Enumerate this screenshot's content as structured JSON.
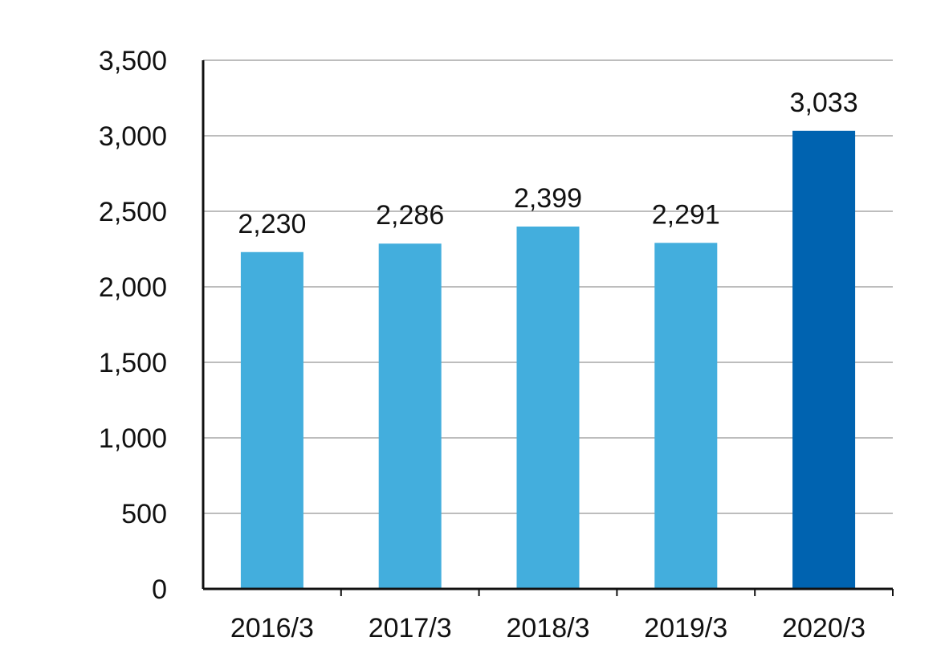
{
  "chart_data": {
    "type": "bar",
    "categories": [
      "2016/3",
      "2017/3",
      "2018/3",
      "2019/3",
      "2020/3"
    ],
    "values": [
      2230,
      2286,
      2399,
      2291,
      3033
    ],
    "data_labels": [
      "2,230",
      "2,286",
      "2,399",
      "2,291",
      "3,033"
    ],
    "title": "",
    "xlabel": "",
    "ylabel": "",
    "ylim": [
      0,
      3500
    ],
    "yticks": [
      0,
      500,
      1000,
      1500,
      2000,
      2500,
      3000,
      3500
    ],
    "ytick_labels": [
      "0",
      "500",
      "1,000",
      "1,500",
      "2,000",
      "2,500",
      "3,000",
      "3,500"
    ],
    "grid": true,
    "legend": "none",
    "colors": {
      "bar": "#43AEDD",
      "highlight_bar": "#0063B0",
      "grid": "#BDBDBD",
      "axis": "#111111"
    },
    "highlight_index": 4
  }
}
